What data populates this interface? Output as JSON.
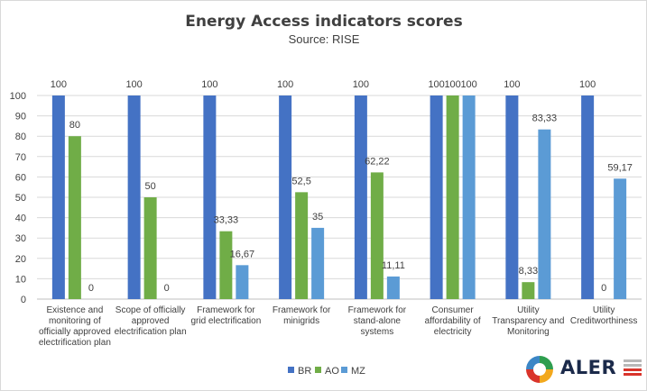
{
  "chart_data": {
    "type": "bar",
    "title": "Energy Access indicators scores",
    "subtitle": "Source: RISE",
    "xlabel": "",
    "ylabel": "",
    "ylim": [
      0,
      100
    ],
    "yticks": [
      0,
      10,
      20,
      30,
      40,
      50,
      60,
      70,
      80,
      90,
      100
    ],
    "grid": true,
    "legend": "bottom",
    "categories": [
      "Existence and monitoring of officially approved electrification plan",
      "Scope of officially approved electrification plan",
      "Framework for grid electrification",
      "Framework for minigrids",
      "Framework for stand-alone systems",
      "Consumer affordability of electricity",
      "Utility Transparency and Monitoring",
      "Utility Creditworthiness"
    ],
    "category_lines": [
      [
        "Existence and",
        "monitoring of",
        "officially approved",
        "electrification plan"
      ],
      [
        "Scope of officially",
        "approved",
        "electrification plan"
      ],
      [
        "Framework for",
        "grid electrification"
      ],
      [
        "Framework for",
        "minigrids"
      ],
      [
        "Framework for",
        "stand-alone",
        "systems"
      ],
      [
        "Consumer",
        "affordability of",
        "electricity"
      ],
      [
        "Utility",
        "Transparency and",
        "Monitoring"
      ],
      [
        "Utility",
        "Creditworthiness"
      ]
    ],
    "series": [
      {
        "name": "BR",
        "color": "#4472c4",
        "values": [
          100,
          100,
          100,
          100,
          100,
          100,
          100,
          100
        ],
        "labels": [
          "100",
          "100",
          "100",
          "100",
          "100",
          "100",
          "100",
          "100"
        ]
      },
      {
        "name": "AO",
        "color": "#70ad47",
        "values": [
          80,
          50,
          33.33,
          52.5,
          62.22,
          100,
          8.33,
          0
        ],
        "labels": [
          "80",
          "50",
          "33,33",
          "52,5",
          "62,22",
          "100",
          "8,33",
          "0"
        ]
      },
      {
        "name": "MZ",
        "color": "#5b9bd5",
        "values": [
          0,
          0,
          16.67,
          35,
          11.11,
          100,
          83.33,
          59.17
        ],
        "labels": [
          "0",
          "0",
          "16,67",
          "35",
          "11,11",
          "100",
          "83,33",
          "59,17"
        ]
      }
    ]
  },
  "logo": {
    "text": "ALER",
    "icon": "aler-logo-icon"
  }
}
